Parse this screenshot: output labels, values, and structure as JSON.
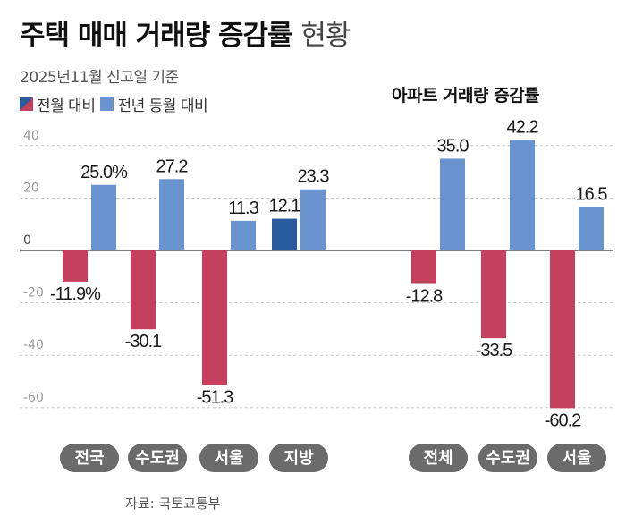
{
  "title": {
    "main": "주택 매매 거래량 증감률",
    "sub": "현황"
  },
  "subtitle": "2025년11월 신고일 기준",
  "legend": {
    "monthly": "전월 대비",
    "yearly": "전년 동월 대비"
  },
  "apt_title": "아파트 거래량 증감률",
  "source": "자료: 국토교통부",
  "colors": {
    "negative": "#c4405c",
    "positive_monthly": "#2a5b9e",
    "yearly": "#6a94cf",
    "grid": "#c8c8c8",
    "pill_bg": "#6b6b6b",
    "pill_text": "#ffffff",
    "axis_text": "#999999"
  },
  "chart_data": [
    {
      "type": "bar",
      "title": "주택 매매 거래량 증감률",
      "categories": [
        "전국",
        "수도권",
        "서울",
        "지방"
      ],
      "series": [
        {
          "name": "전월 대비",
          "values": [
            -11.9,
            -30.1,
            -51.3,
            12.1
          ],
          "labels": [
            "-11.9%",
            "-30.1",
            "-51.3",
            "12.1"
          ]
        },
        {
          "name": "전년 동월 대비",
          "values": [
            25.0,
            27.2,
            11.3,
            23.3
          ],
          "labels": [
            "25.0%",
            "27.2",
            "11.3",
            "23.3"
          ]
        }
      ],
      "yticks": [
        40,
        20,
        0,
        -20,
        -40,
        -60
      ],
      "ytick_labels": [
        "40",
        "20",
        "0",
        "-20",
        "-40",
        "-60"
      ],
      "ylim": [
        -60,
        40
      ]
    },
    {
      "type": "bar",
      "title": "아파트 거래량 증감률",
      "categories": [
        "전체",
        "수도권",
        "서울"
      ],
      "series": [
        {
          "name": "전월 대비",
          "values": [
            -12.8,
            -33.5,
            -60.2
          ],
          "labels": [
            "-12.8",
            "-33.5",
            "-60.2"
          ]
        },
        {
          "name": "전년 동월 대비",
          "values": [
            35.0,
            42.2,
            16.5
          ],
          "labels": [
            "35.0",
            "42.2",
            "16.5"
          ]
        }
      ],
      "ylim": [
        -60,
        40
      ]
    }
  ]
}
